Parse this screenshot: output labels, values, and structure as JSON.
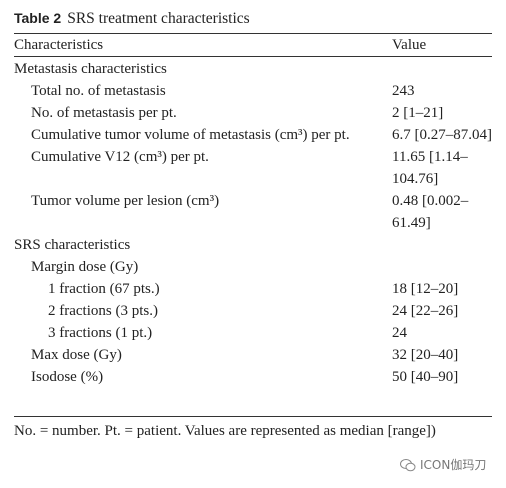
{
  "caption": {
    "number": "Table 2",
    "title": "SRS treatment characteristics"
  },
  "table": {
    "header": [
      "Characteristics",
      "Value"
    ],
    "sections": [
      {
        "title": "Metastasis characteristics",
        "rows": [
          {
            "label": "Total no. of metastasis",
            "value": "243"
          },
          {
            "label": "No. of metastasis per pt.",
            "value": "2 [1–21]"
          },
          {
            "label": "Cumulative tumor volume of metastasis (cm³) per pt.",
            "value": "6.7 [0.27–87.04]"
          },
          {
            "label": "Cumulative V12 (cm³) per pt.",
            "value": "11.65 [1.14–104.76]"
          },
          {
            "label": "Tumor volume per lesion (cm³)",
            "value": "0.48 [0.002–61.49]"
          }
        ]
      },
      {
        "title": "SRS characteristics",
        "rows": [
          {
            "label": "Margin dose (Gy)",
            "rows": [
              {
                "label": "1 fraction (67 pts.)",
                "value": "18 [12–20]"
              },
              {
                "label": "2 fractions (3 pts.)",
                "value": "24 [22–26]"
              },
              {
                "label": "3 fractions (1 pt.)",
                "value": "24"
              }
            ]
          },
          {
            "label": "Max dose (Gy)",
            "value": "32 [20–40]"
          },
          {
            "label": "Isodose (%)",
            "value": "50 [40–90]"
          }
        ]
      }
    ]
  },
  "footnote": "No. = number. Pt. = patient. Values are represented as median [range])",
  "watermark": "ICON伽玛刀"
}
